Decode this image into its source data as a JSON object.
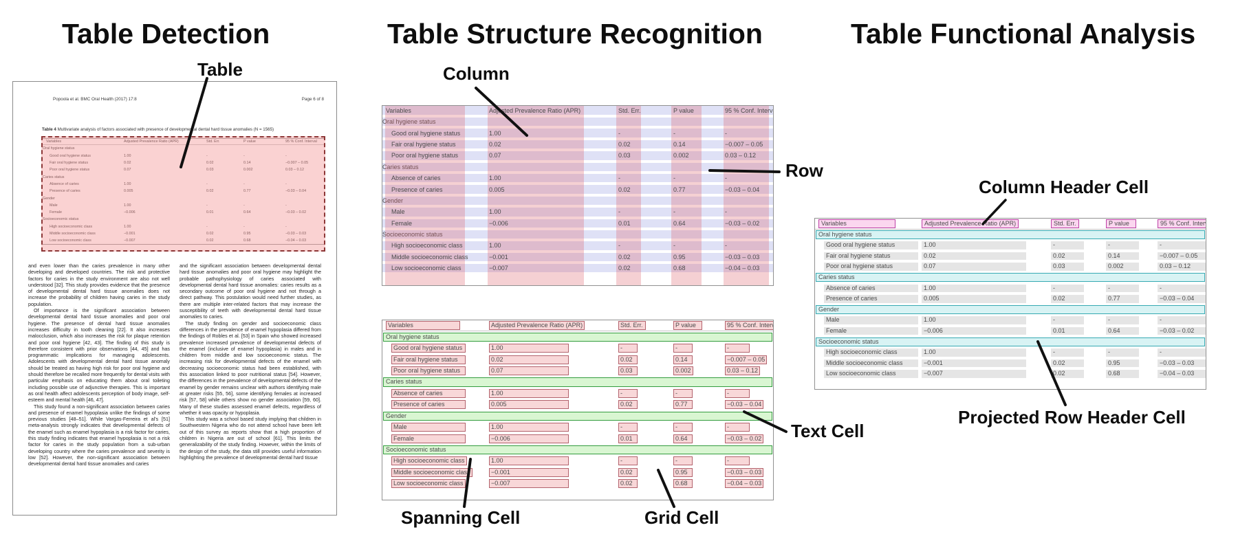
{
  "figure": {
    "panel_titles": {
      "detection": "Table Detection",
      "structure": "Table Structure Recognition",
      "functional": "Table Functional Analysis"
    },
    "callouts": {
      "table": "Table",
      "column": "Column",
      "row": "Row",
      "text_cell": "Text Cell",
      "spanning_cell": "Spanning Cell",
      "grid_cell": "Grid Cell",
      "column_header_cell": "Column Header Cell",
      "projected_row_header_cell": "Projected Row Header Cell"
    },
    "colors": {
      "detection_overlay_fill": "#f28f8f",
      "detection_overlay_border": "#8d3636",
      "row_band": "#848bdd",
      "column_band": "#df626c",
      "grid_cell_fill": "#f8d7d8",
      "grid_cell_border": "#b2626c",
      "spanning_cell_fill": "#d9f6d2",
      "spanning_cell_border": "#329c3d",
      "column_header_fill": "#fbd6ef",
      "column_header_border": "#bd40a6",
      "projected_row_header_fill": "#d8f3f4",
      "projected_row_header_border": "#35a9b2",
      "text_cell_fill": "#e5e5e5"
    }
  },
  "document": {
    "header_left": "Popoola et al. BMC Oral Health  (2017) 17:8",
    "header_right": "Page 6 of 8",
    "table_caption_label": "Table 4",
    "table_caption_text": " Multivariate analysis of factors associated with presence of developmental dental hard tissue anomalies (N = 1565)",
    "body_columns": {
      "col1": [
        "and even lower than the caries prevalence in many other developing and developed countries. The risk and protective factors for caries in the study environment are also not well understood [32]. This study provides evidence that the presence of developmental dental hard tissue anomalies does not increase the probability of children having caries in the study population.",
        "Of importance is the significant association between developmental dental hard tissue anomalies and poor oral hygiene. The presence of dental hard tissue anomalies increases difficulty in tooth cleaning [22]. It also increases malocclusion, which also increases the risk for plaque retention and poor oral hygiene [42, 43]. The finding of this study is therefore consistent with prior observations [44, 45] and has programmatic implications for managing adolescents. Adolescents with developmental dental hard tissue anomaly should be treated as having high risk for poor oral hygiene and should therefore be recalled more frequently for dental visits with particular emphasis on educating them about oral toileting including possible use of adjunctive therapies. This is important as oral health affect adolescents perception of body image, self-esteem and mental health [46, 47].",
        "This study found a non-significant association between caries and presence of enamel hypoplasia unlike the findings of some previous studies [48–51]. While Vargas-Ferreira et al's [51] meta-analysis strongly indicates that developmental defects of the enamel such as enamel hypoplasia is a risk factor for caries, this study finding indicates that enamel hypoplasia is not a risk factor for caries in the study population from a sub-urban developing country where the caries prevalence and severity is low [52]. However, the non-significant association between developmental dental hard tissue anomalies and caries"
      ],
      "col2": [
        "and the significant association between developmental dental hard tissue anomalies and poor oral hygiene may highlight the probable pathophysiology of caries associated with developmental dental hard tissue anomalies: caries results as a secondary outcome of poor oral hygiene and not through a direct pathway. This postulation would need further studies, as there are multiple inter-related factors that may increase the susceptibility of teeth with developmental dental hard tissue anomalies to caries.",
        "The study finding on gender and socioeconomic class differences in the prevalence of enamel hypoplasia differed from the findings of Robles et al. [53] in Spain who showed increased prevalence increased prevalence of developmental defects of the enamel (inclusive of enamel hypoplasia) in males and in children from middle and low socioeconomic status. The increasing risk for developmental defects of the enamel with decreasing socioeconomic status had been established, with this association linked to poor nutritional status [54]. However, the differences in the prevalence of developmental defects of the enamel by gender remains unclear with authors identifying male at greater risks [55, 56], some identifying females at increased risk [57, 58] while others show no gender association [59, 60]. Many of these studies assessed enamel defects, regardless of whether it was opacity or hypoplasia.",
        "This study was a school based study implying that children in Southwestern Nigeria who do not attend school have been left out of this survey as reports show that a high proportion of children in Nigeria are out of school [61]. This limits the generalizability of the study finding. However, within the limits of the design of the study, the data still provides useful information highlighting the prevalence of developmental dental hard tissue"
      ]
    }
  },
  "table": {
    "columns": [
      "Variables",
      "Adjusted Prevalence Ratio (APR)",
      "Std. Err.",
      "P value",
      "95 % Conf. Interval"
    ],
    "rows": [
      {
        "section": true,
        "label": "Oral hygiene status"
      },
      {
        "section": false,
        "cells": [
          "Good oral hygiene status",
          "1.00",
          "-",
          "-",
          "-"
        ]
      },
      {
        "section": false,
        "cells": [
          "Fair oral hygiene status",
          "0.02",
          "0.02",
          "0.14",
          "−0.007 – 0.05"
        ]
      },
      {
        "section": false,
        "cells": [
          "Poor oral hygiene status",
          "0.07",
          "0.03",
          "0.002",
          "0.03 – 0.12"
        ]
      },
      {
        "section": true,
        "label": "Caries status"
      },
      {
        "section": false,
        "cells": [
          "Absence of caries",
          "1.00",
          "-",
          "-",
          "-"
        ]
      },
      {
        "section": false,
        "cells": [
          "Presence of caries",
          "0.005",
          "0.02",
          "0.77",
          "−0.03 – 0.04"
        ]
      },
      {
        "section": true,
        "label": "Gender"
      },
      {
        "section": false,
        "cells": [
          "Male",
          "1.00",
          "-",
          "-",
          "-"
        ]
      },
      {
        "section": false,
        "cells": [
          "Female",
          "−0.006",
          "0.01",
          "0.64",
          "−0.03 – 0.02"
        ]
      },
      {
        "section": true,
        "label": "Socioeconomic status"
      },
      {
        "section": false,
        "cells": [
          "High socioeconomic class",
          "1.00",
          "-",
          "-",
          "-"
        ]
      },
      {
        "section": false,
        "cells": [
          "Middle socioeconomic class",
          "−0.001",
          "0.02",
          "0.95",
          "−0.03 – 0.03"
        ]
      },
      {
        "section": false,
        "cells": [
          "Low socioeconomic class",
          "−0.007",
          "0.02",
          "0.68",
          "−0.04 – 0.03"
        ]
      }
    ]
  }
}
